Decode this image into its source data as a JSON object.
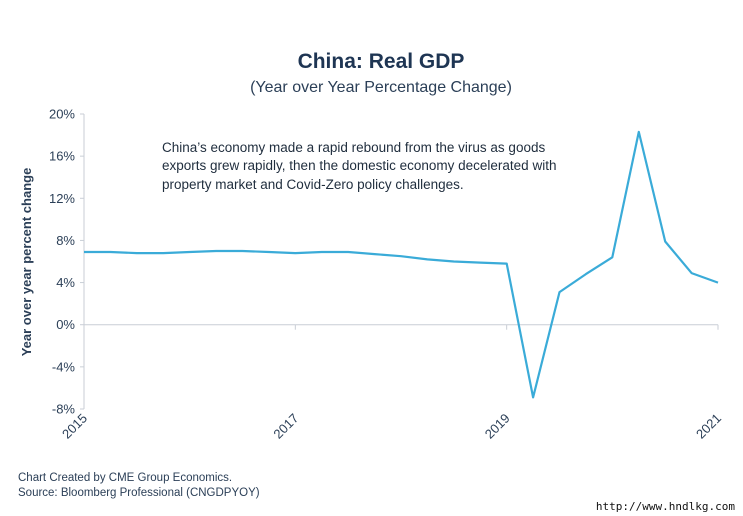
{
  "chart_data": {
    "type": "line",
    "title": "China: Real GDP",
    "subtitle": "(Year over Year Percentage Change)",
    "ylabel": "Year over year percent change",
    "ylim": [
      -8,
      20
    ],
    "yticks": [
      -8,
      -4,
      0,
      4,
      8,
      12,
      16,
      20
    ],
    "ytick_labels": [
      "-8%",
      "-4%",
      "0%",
      "4%",
      "8%",
      "12%",
      "16%",
      "20%"
    ],
    "xlim": [
      2015.0,
      2021.0
    ],
    "xticks": [
      2015,
      2017,
      2019,
      2021
    ],
    "xtick_labels": [
      "2015",
      "2017",
      "2019",
      "2021"
    ],
    "grid": false,
    "color": "#3aabd8",
    "series": [
      {
        "x": [
          2015.0,
          2015.25,
          2015.5,
          2015.75,
          2016.0,
          2016.25,
          2016.5,
          2016.75,
          2017.0,
          2017.25,
          2017.5,
          2017.75,
          2018.0,
          2018.25,
          2018.5,
          2018.75,
          2019.0,
          2019.25,
          2019.5,
          2019.75,
          2020.0,
          2020.25,
          2020.5,
          2020.75,
          2021.0
        ],
        "values": [
          6.9,
          6.9,
          6.8,
          6.8,
          6.9,
          7.0,
          7.0,
          6.9,
          6.8,
          6.9,
          6.9,
          6.7,
          6.5,
          6.2,
          6.0,
          5.9,
          5.8,
          -6.9,
          3.1,
          4.8,
          6.4,
          18.3,
          7.9,
          4.9,
          4.0
        ]
      }
    ],
    "annotation": [
      "China’s economy made a rapid rebound from the virus as goods",
      "exports grew rapidly, then the domestic economy decelerated with",
      "property market and Covid-Zero policy challenges."
    ]
  },
  "footer": {
    "credit": "Chart Created by CME Group Economics.",
    "source": "Source:  Bloomberg Professional (CNGDPYOY)"
  },
  "watermark": "http://www.hndlkg.com"
}
